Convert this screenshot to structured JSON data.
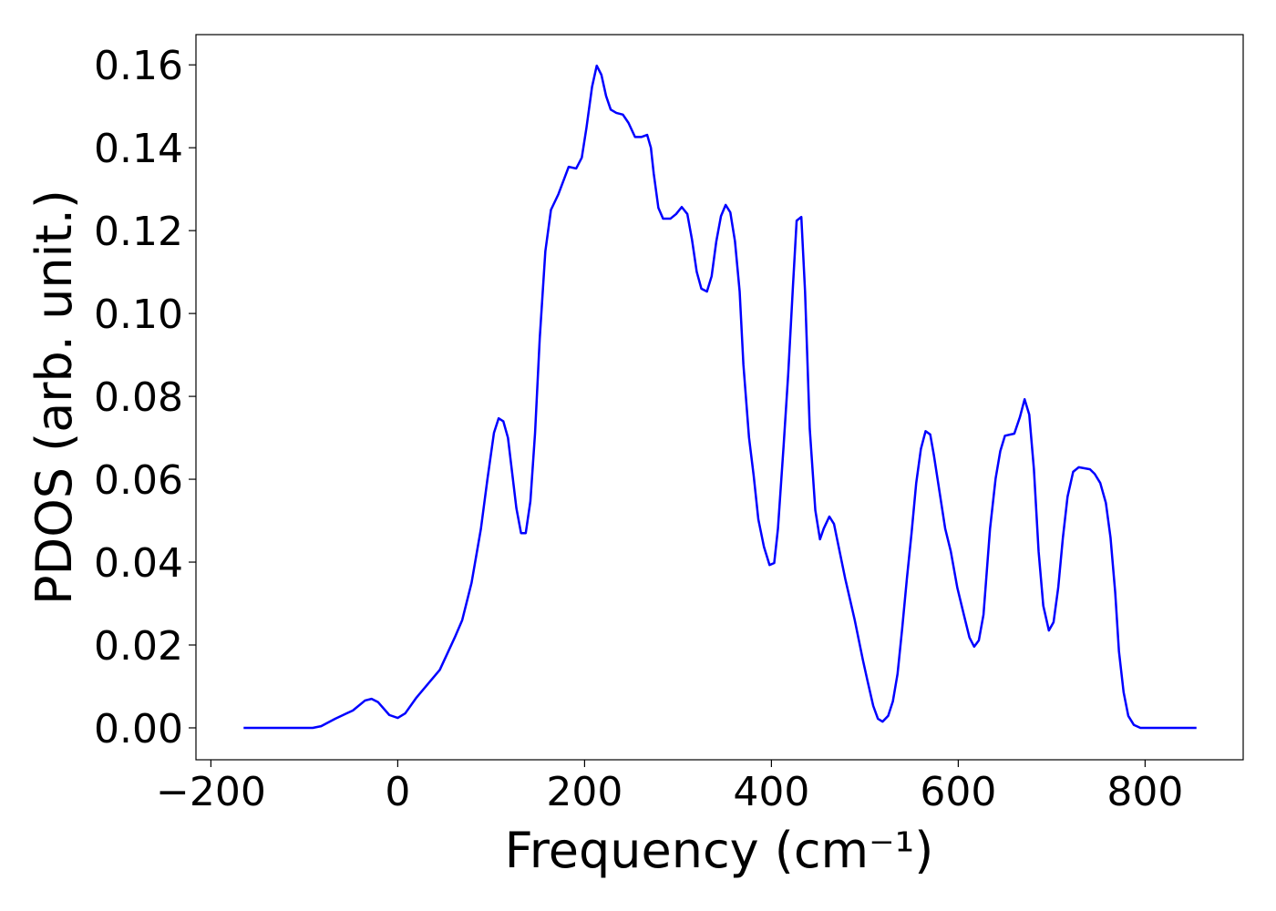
{
  "chart_data": {
    "type": "line",
    "xlabel": "Frequency (cm⁻¹)",
    "ylabel": "PDOS (arb. unit.)",
    "xlim": [
      -216,
      905
    ],
    "ylim": [
      -0.0077,
      0.1673
    ],
    "xticks": [
      {
        "value": -200,
        "label": "−200"
      },
      0,
      200,
      400,
      600,
      800
    ],
    "yticks": [
      {
        "value": 0,
        "label": "0.00"
      },
      {
        "value": 0.02,
        "label": "0.02"
      },
      {
        "value": 0.04,
        "label": "0.04"
      },
      {
        "value": 0.06,
        "label": "0.06"
      },
      {
        "value": 0.08,
        "label": "0.08"
      },
      {
        "value": 0.1,
        "label": "0.10"
      },
      {
        "value": 0.12,
        "label": "0.12"
      },
      {
        "value": 0.14,
        "label": "0.14"
      },
      {
        "value": 0.16,
        "label": "0.16"
      }
    ],
    "grid": false,
    "series": [
      {
        "color": "#0000ff",
        "x": [
          -165,
          -91,
          -82,
          -67,
          -48,
          -35,
          -28,
          -21,
          -9,
          0,
          8,
          20,
          45,
          61,
          69,
          79,
          89,
          96,
          103,
          108,
          113,
          118,
          127,
          132,
          137,
          142,
          147,
          152,
          158,
          164,
          172,
          183,
          191,
          197,
          202,
          208,
          213,
          218,
          223,
          228,
          234,
          241,
          247,
          254,
          261,
          267,
          271,
          274,
          279,
          284,
          292,
          298,
          304,
          310,
          315,
          320,
          325,
          331,
          336,
          341,
          346,
          351,
          356,
          361,
          366,
          370,
          376,
          381,
          386,
          392,
          398,
          403,
          407,
          413,
          418,
          423,
          427,
          432,
          436,
          441,
          447,
          452,
          456,
          462,
          467,
          473,
          479,
          489,
          498,
          503,
          509,
          514,
          519,
          525,
          530,
          535,
          540,
          545,
          550,
          555,
          560,
          565,
          570,
          574,
          580,
          586,
          592,
          599,
          606,
          612,
          617,
          622,
          627,
          634,
          640,
          645,
          650,
          660,
          666,
          671,
          676,
          681,
          686,
          691,
          697,
          702,
          707,
          712,
          717,
          723,
          729,
          741,
          746,
          752,
          758,
          763,
          768,
          772,
          777,
          782,
          788,
          795,
          855
        ],
        "values": [
          0,
          0,
          0.0004,
          0.0022,
          0.0042,
          0.0066,
          0.007,
          0.0062,
          0.0031,
          0.0024,
          0.0035,
          0.0073,
          0.014,
          0.0218,
          0.026,
          0.035,
          0.048,
          0.06,
          0.0712,
          0.0747,
          0.074,
          0.07,
          0.053,
          0.047,
          0.047,
          0.0547,
          0.0712,
          0.094,
          0.115,
          0.125,
          0.1288,
          0.1354,
          0.135,
          0.1376,
          0.1448,
          0.1547,
          0.1598,
          0.1576,
          0.1525,
          0.1492,
          0.1484,
          0.148,
          0.146,
          0.1426,
          0.1426,
          0.1431,
          0.14,
          0.1338,
          0.1255,
          0.1229,
          0.1229,
          0.124,
          0.1257,
          0.124,
          0.1178,
          0.1101,
          0.106,
          0.1053,
          0.109,
          0.1174,
          0.1235,
          0.1262,
          0.1244,
          0.1174,
          0.1053,
          0.0877,
          0.0701,
          0.0609,
          0.0503,
          0.0437,
          0.0393,
          0.0398,
          0.0481,
          0.0679,
          0.0855,
          0.1064,
          0.1224,
          0.1233,
          0.1053,
          0.0723,
          0.0525,
          0.0455,
          0.0481,
          0.051,
          0.0492,
          0.0426,
          0.036,
          0.0262,
          0.0163,
          0.0112,
          0.0053,
          0.0022,
          0.0015,
          0.0029,
          0.0064,
          0.013,
          0.024,
          0.036,
          0.047,
          0.0591,
          0.0673,
          0.0716,
          0.0708,
          0.0657,
          0.0569,
          0.0481,
          0.0426,
          0.0338,
          0.0273,
          0.0218,
          0.0196,
          0.0211,
          0.0273,
          0.048,
          0.0602,
          0.0668,
          0.0705,
          0.071,
          0.075,
          0.0793,
          0.0756,
          0.0624,
          0.0426,
          0.0295,
          0.0235,
          0.0255,
          0.0338,
          0.0459,
          0.0558,
          0.0618,
          0.0629,
          0.0624,
          0.0613,
          0.0591,
          0.0543,
          0.0459,
          0.0327,
          0.0185,
          0.0086,
          0.0029,
          0.0007,
          0,
          0
        ]
      }
    ]
  }
}
